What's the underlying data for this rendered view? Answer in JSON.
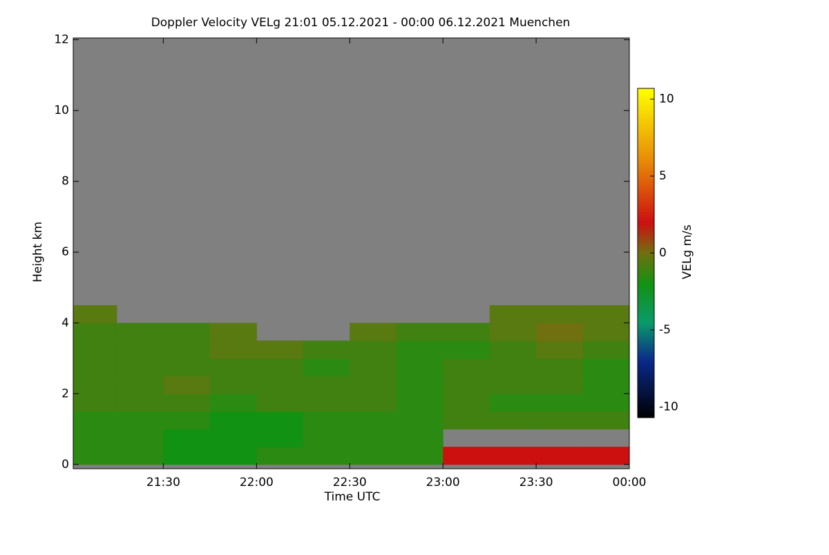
{
  "chart_data": {
    "type": "heatmap",
    "title": "Doppler Velocity VELg   21:01 05.12.2021 - 00:00 06.12.2021 Muenchen",
    "x_label": "Time UTC",
    "y_label": "Height km",
    "colorbar_label": "VELg m/s",
    "xbins": [
      21.0167,
      21.25,
      21.5,
      21.75,
      22.0,
      22.25,
      22.5,
      22.75,
      23.0,
      23.25,
      23.5,
      23.75,
      24.0
    ],
    "ybins": [
      0,
      0.5,
      1,
      1.5,
      2,
      2.5,
      3,
      3.5,
      4,
      4.5,
      5,
      12
    ],
    "values": [
      [
        -1.5,
        -1.5,
        -2,
        -2,
        -1.5,
        -1.5,
        -1.5,
        -1.5,
        2,
        2,
        2,
        2
      ],
      [
        -1.5,
        -1.5,
        -2,
        -2,
        -2,
        -1.5,
        -1.5,
        -1.5,
        null,
        null,
        null,
        null
      ],
      [
        -1.5,
        -1.5,
        -1.5,
        -2,
        -2,
        -1.5,
        -1.5,
        -1.5,
        -1,
        -1,
        -1,
        -1
      ],
      [
        -1,
        -1,
        -1,
        -1.5,
        -1,
        -1,
        -1,
        -1.5,
        -1,
        -1.5,
        -1.5,
        -1.5
      ],
      [
        -1,
        -1,
        -0.5,
        -1,
        -1,
        -1,
        -1,
        -1.5,
        -1,
        -1,
        -1,
        -1.5
      ],
      [
        -1,
        -1,
        -1,
        -1,
        -1,
        -1.5,
        -1,
        -1.5,
        -1,
        -1,
        -1,
        -1.5
      ],
      [
        -1,
        -1,
        -1,
        -0.5,
        -0.5,
        -1,
        -1,
        -1.5,
        -1.5,
        -1,
        -0.5,
        -1
      ],
      [
        -1,
        -1,
        -1,
        -0.5,
        null,
        null,
        -0.5,
        -1,
        -1,
        -0.5,
        0,
        -0.5
      ],
      [
        -0.5,
        null,
        null,
        null,
        null,
        null,
        null,
        null,
        null,
        -0.5,
        -0.5,
        -0.5
      ],
      [
        null,
        null,
        null,
        null,
        null,
        null,
        null,
        null,
        null,
        null,
        null,
        null
      ],
      [
        null,
        null,
        null,
        null,
        null,
        null,
        null,
        null,
        null,
        null,
        null,
        null
      ]
    ],
    "nodata_color": "#808080",
    "colormap": [
      [
        -10.7,
        "#000000"
      ],
      [
        -7,
        "#0a2a8a"
      ],
      [
        -4.5,
        "#0a9a6a"
      ],
      [
        -2,
        "#129212"
      ],
      [
        0,
        "#707010"
      ],
      [
        2,
        "#cc1010"
      ],
      [
        6,
        "#e88a08"
      ],
      [
        10.7,
        "#ffff00"
      ]
    ],
    "xlim": [
      21.0167,
      24.0
    ],
    "xticks": [
      {
        "value": 21.5,
        "label": "21:30"
      },
      {
        "value": 22.0,
        "label": "22:00"
      },
      {
        "value": 22.5,
        "label": "22:30"
      },
      {
        "value": 23.0,
        "label": "23:00"
      },
      {
        "value": 23.5,
        "label": "23:30"
      },
      {
        "value": 24.0,
        "label": "00:00"
      }
    ],
    "ylim": [
      -0.12,
      12.05
    ],
    "yticks": [
      0,
      2,
      4,
      6,
      8,
      10,
      12
    ],
    "clim": [
      -10.7,
      10.7
    ],
    "cticks": [
      -10,
      -5,
      0,
      5,
      10
    ]
  }
}
